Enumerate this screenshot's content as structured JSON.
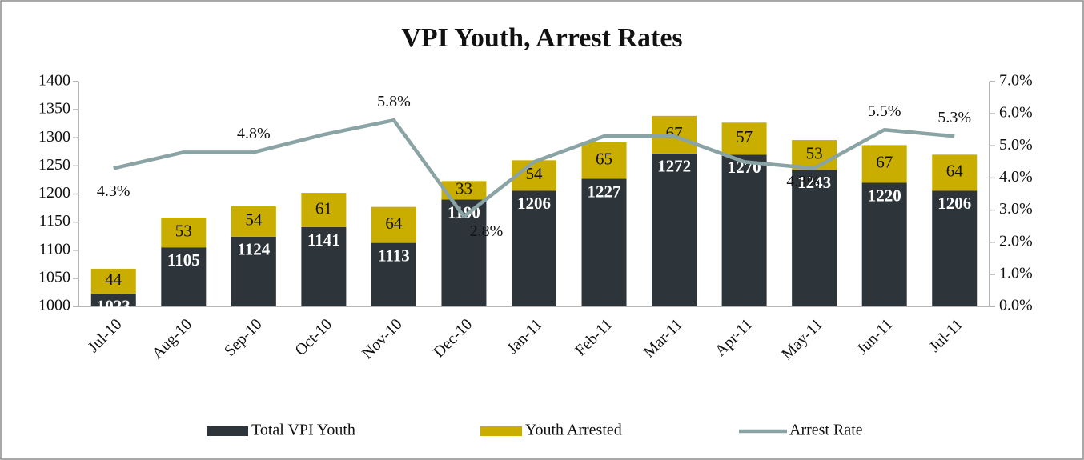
{
  "chart_data": {
    "type": "bar",
    "stacked": true,
    "title": "VPI Youth, Arrest Rates",
    "categories": [
      "Jul-10",
      "Aug-10",
      "Sep-10",
      "Oct-10",
      "Nov-10",
      "Dec-10",
      "Jan-11",
      "Feb-11",
      "Mar-11",
      "Apr-11",
      "May-11",
      "Jun-11",
      "Jul-11"
    ],
    "series": [
      {
        "name": "Total VPI Youth",
        "type": "bar",
        "color": "#2d353a",
        "label_color": "#ffffff",
        "values": [
          1023,
          1105,
          1124,
          1141,
          1113,
          1190,
          1206,
          1227,
          1272,
          1270,
          1243,
          1220,
          1206
        ]
      },
      {
        "name": "Youth Arrested",
        "type": "bar",
        "color": "#c9ae00",
        "label_color": "#111111",
        "values": [
          44,
          53,
          54,
          61,
          64,
          33,
          54,
          65,
          67,
          57,
          53,
          67,
          64
        ]
      },
      {
        "name": "Arrest Rate",
        "type": "line",
        "axis": "y2",
        "color": "#8aa3a4",
        "values": [
          4.3,
          4.8,
          4.8,
          5.35,
          5.8,
          2.8,
          4.5,
          5.3,
          5.3,
          4.5,
          4.3,
          5.5,
          5.3
        ],
        "value_labels": [
          "4.3%",
          null,
          "4.8%",
          null,
          "5.8%",
          "2.8%",
          null,
          null,
          null,
          null,
          "4.3%",
          "5.5%",
          "5.3%"
        ]
      }
    ],
    "ylim": [
      1000,
      1400
    ],
    "yticks": [
      1000,
      1050,
      1100,
      1150,
      1200,
      1250,
      1300,
      1350,
      1400
    ],
    "y2lim": [
      0,
      7
    ],
    "y2ticks": [
      {
        "value": 0,
        "label": "0.0%"
      },
      {
        "value": 1,
        "label": "1.0%"
      },
      {
        "value": 2,
        "label": "2.0%"
      },
      {
        "value": 3,
        "label": "3.0%"
      },
      {
        "value": 4,
        "label": "4.0%"
      },
      {
        "value": 5,
        "label": "5.0%"
      },
      {
        "value": 6,
        "label": "6.0%"
      },
      {
        "value": 7,
        "label": "7.0%"
      }
    ],
    "grid": false,
    "legend": "bottom"
  }
}
